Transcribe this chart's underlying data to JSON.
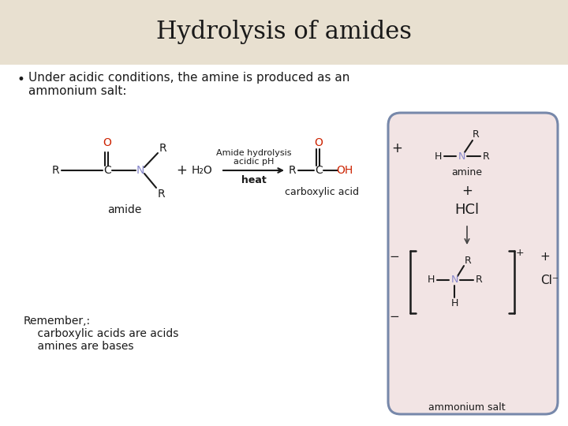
{
  "title": "Hydrolysis of amides",
  "title_bg": "#e8e0d0",
  "slide_bg": "#ffffff",
  "bullet_line1": "Under acidic conditions, the amine is produced as an",
  "bullet_line2": "ammonium salt:",
  "remember_line1": "Remember,:",
  "remember_line2": "    carboxylic acids are acids",
  "remember_line3": "    amines are bases",
  "pink_box_bg": "#f2e4e4",
  "pink_box_border": "#7788aa",
  "reaction_label_top": "Amide hydrolysis",
  "reaction_label_mid": "acidic pH",
  "reaction_label_bot": "heat",
  "color_black": "#1a1a1a",
  "color_red": "#cc2200",
  "color_nitrogen": "#8888cc",
  "amide_label": "amide",
  "carboxyl_label": "carboxylic acid",
  "amine_label": "amine",
  "ammonium_label": "ammonium salt"
}
